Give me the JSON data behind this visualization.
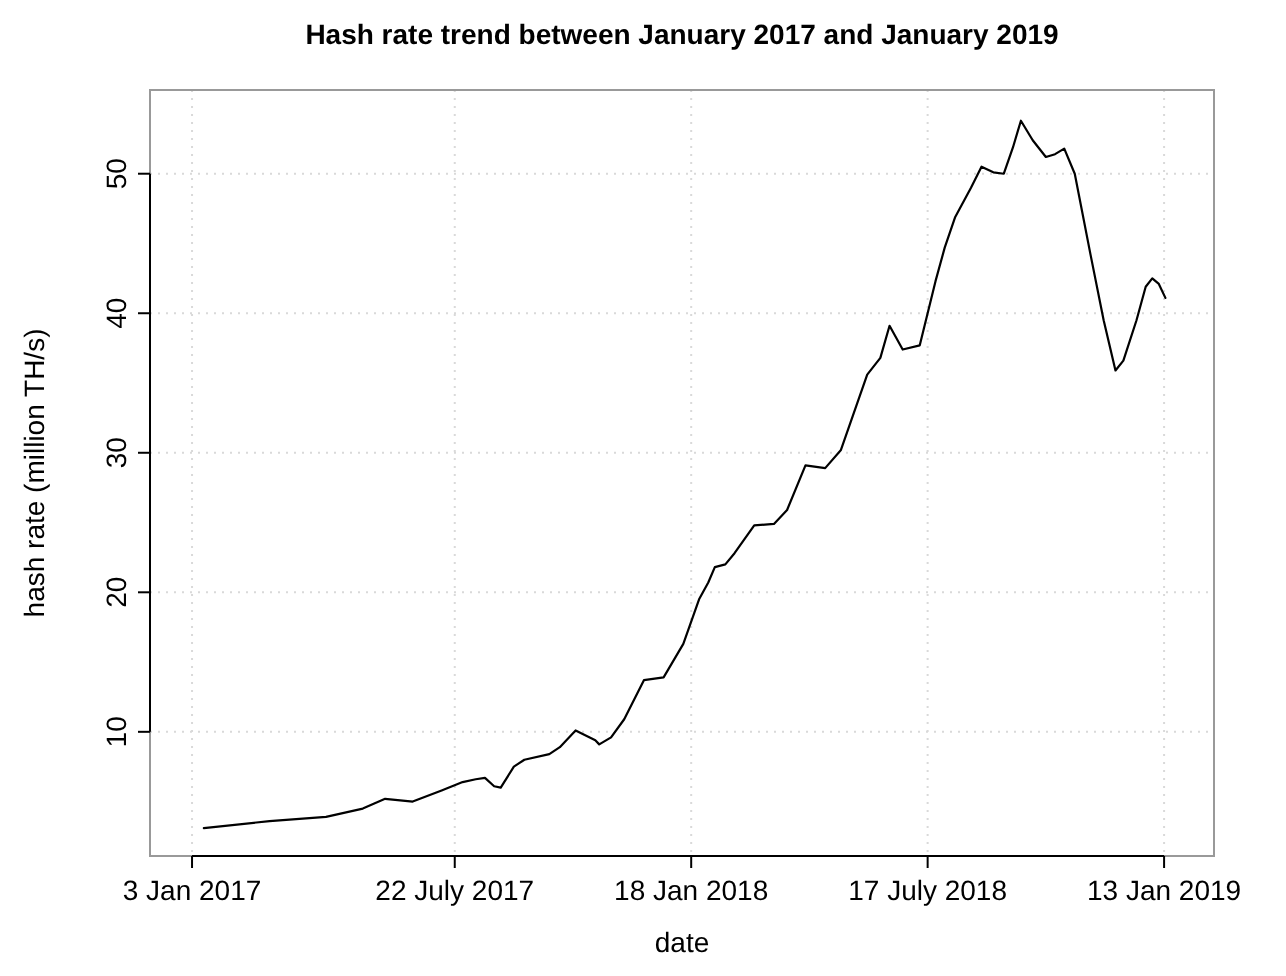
{
  "chart_data": {
    "type": "line",
    "title": "Hash rate trend between January 2017 and January 2019",
    "xlabel": "date",
    "ylabel": "hash rate (million TH/s)",
    "x": [
      "2017-01-12",
      "2017-03-03",
      "2017-04-15",
      "2017-05-13",
      "2017-05-30",
      "2017-06-20",
      "2017-07-12",
      "2017-07-28",
      "2017-08-07",
      "2017-08-14",
      "2017-08-21",
      "2017-08-26",
      "2017-09-05",
      "2017-09-13",
      "2017-10-02",
      "2017-10-10",
      "2017-10-22",
      "2017-11-06",
      "2017-11-09",
      "2017-11-18",
      "2017-11-28",
      "2017-12-13",
      "2017-12-28",
      "2018-01-12",
      "2018-01-24",
      "2018-01-31",
      "2018-02-05",
      "2018-02-13",
      "2018-02-20",
      "2018-03-07",
      "2018-03-22",
      "2018-04-01",
      "2018-04-15",
      "2018-04-30",
      "2018-05-12",
      "2018-06-01",
      "2018-06-11",
      "2018-06-18",
      "2018-06-28",
      "2018-07-11",
      "2018-07-23",
      "2018-07-30",
      "2018-08-07",
      "2018-08-19",
      "2018-08-27",
      "2018-09-05",
      "2018-09-13",
      "2018-09-20",
      "2018-09-26",
      "2018-10-05",
      "2018-10-15",
      "2018-10-22",
      "2018-10-29",
      "2018-11-06",
      "2018-11-18",
      "2018-11-28",
      "2018-12-07",
      "2018-12-13",
      "2018-12-23",
      "2018-12-30",
      "2019-01-04",
      "2019-01-09",
      "2019-01-14"
    ],
    "series": [
      {
        "color": "#000000",
        "values": [
          3.1,
          3.6,
          3.9,
          4.5,
          5.2,
          5.0,
          5.8,
          6.4,
          6.6,
          6.7,
          6.1,
          6.0,
          7.5,
          8.0,
          8.4,
          8.9,
          10.1,
          9.4,
          9.1,
          9.6,
          10.9,
          13.7,
          13.9,
          16.3,
          19.5,
          20.7,
          21.8,
          22.0,
          22.8,
          24.8,
          24.9,
          25.9,
          29.1,
          28.9,
          30.2,
          35.6,
          36.8,
          39.1,
          37.4,
          37.7,
          42.3,
          44.7,
          46.9,
          49.0,
          50.5,
          50.1,
          50.0,
          51.9,
          53.8,
          52.4,
          51.2,
          51.4,
          51.8,
          50.0,
          44.2,
          39.5,
          35.9,
          36.6,
          39.5,
          41.9,
          42.5,
          42.1,
          41.1
        ]
      }
    ],
    "xlim": [
      "2016-12-02",
      "2019-02-20"
    ],
    "xticks": [
      {
        "value": "2017-01-03",
        "label": "3 Jan 2017"
      },
      {
        "value": "2017-07-22",
        "label": "22 July 2017"
      },
      {
        "value": "2018-01-18",
        "label": "18 Jan 2018"
      },
      {
        "value": "2018-07-17",
        "label": "17 July 2018"
      },
      {
        "value": "2019-01-13",
        "label": "13 Jan 2019"
      }
    ],
    "ylim": [
      1.1,
      56
    ],
    "yticks": [
      10,
      20,
      30,
      40,
      50
    ],
    "grid": true,
    "line_style": "solid",
    "marker": "none"
  }
}
